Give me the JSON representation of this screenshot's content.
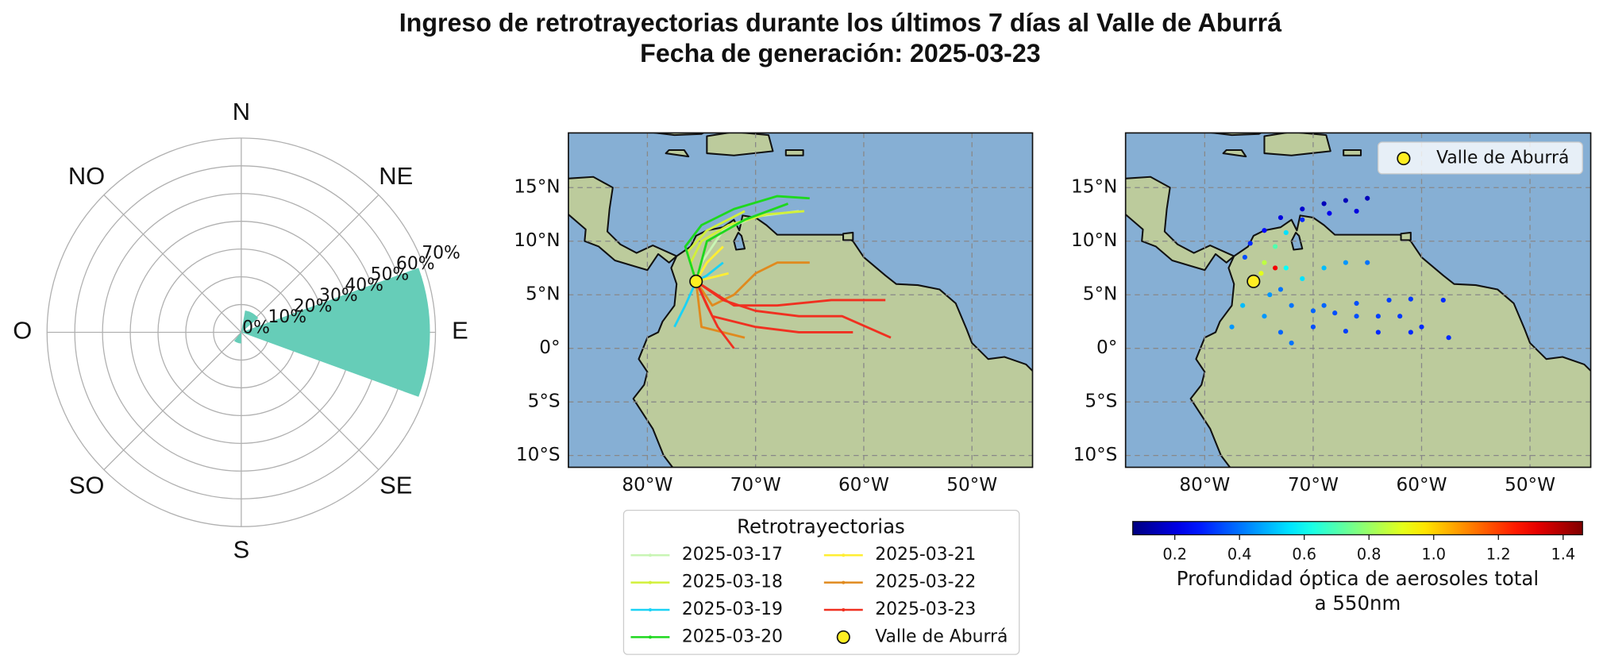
{
  "figure": {
    "title": "Ingreso de retrotrayectorias durante los últimos 7 días al Valle de Aburrá",
    "subtitle": "Fecha de generación: 2025-03-23"
  },
  "chart_data": [
    {
      "type": "polar_bar",
      "theta": [
        90,
        30,
        200
      ],
      "values": [
        68,
        8,
        4
      ],
      "bar_width": 40,
      "color": "#66cdb8",
      "rlim": [
        0,
        70
      ],
      "rticks": [
        {
          "value": 0,
          "label": "0%"
        },
        {
          "value": 10,
          "label": "10%"
        },
        {
          "value": 20,
          "label": "20%"
        },
        {
          "value": 30,
          "label": "30%"
        },
        {
          "value": 40,
          "label": "40%"
        },
        {
          "value": 50,
          "label": "50%"
        },
        {
          "value": 60,
          "label": "60%"
        },
        {
          "value": 70,
          "label": "70%"
        }
      ],
      "rtick_angle": 67.5,
      "theta_ticks": [
        {
          "value": 0,
          "label": "N"
        },
        {
          "value": 45,
          "label": "NE"
        },
        {
          "value": 90,
          "label": "E"
        },
        {
          "value": 135,
          "label": "SE"
        },
        {
          "value": 180,
          "label": "S"
        },
        {
          "value": 225,
          "label": "SO"
        },
        {
          "value": 270,
          "label": "O"
        },
        {
          "value": 315,
          "label": "NO"
        }
      ],
      "grid": true
    },
    {
      "type": "map_lines",
      "xlim": [
        -87.3,
        -44.4
      ],
      "ylim": [
        -11.1,
        20.1
      ],
      "xticks": [
        {
          "value": -80,
          "label": "80°W"
        },
        {
          "value": -70,
          "label": "70°W"
        },
        {
          "value": -60,
          "label": "60°W"
        },
        {
          "value": -50,
          "label": "50°W"
        }
      ],
      "yticks": [
        {
          "value": 15,
          "label": "15°N"
        },
        {
          "value": 10,
          "label": "10°N"
        },
        {
          "value": 5,
          "label": "5°N"
        },
        {
          "value": 0,
          "label": "0°"
        },
        {
          "value": -5,
          "label": "5°S"
        },
        {
          "value": -10,
          "label": "10°S"
        }
      ],
      "grid": true,
      "legend": "below",
      "legend_title": "Retrotrayectorias",
      "series": [
        {
          "name": "2025-03-17",
          "color": "#c8f5b4",
          "trajectories": [
            {
              "lon": [
                -66,
                -70,
                -73,
                -75,
                -75.5
              ],
              "lat": [
                12.8,
                12.3,
                11,
                8,
                6.25
              ]
            }
          ]
        },
        {
          "name": "2025-03-18",
          "color": "#d2f03a",
          "trajectories": [
            {
              "lon": [
                -65.5,
                -69,
                -72.5,
                -75,
                -76,
                -75.5
              ],
              "lat": [
                12.8,
                12.5,
                11.5,
                10,
                8,
                6.25
              ]
            },
            {
              "lon": [
                -71,
                -74.5,
                -76.3,
                -75.5
              ],
              "lat": [
                12.8,
                11,
                9,
                6.25
              ]
            }
          ]
        },
        {
          "name": "2025-03-19",
          "color": "#1ad2f5",
          "trajectories": [
            {
              "lon": [
                -77.5,
                -76.5,
                -75.5
              ],
              "lat": [
                2,
                4,
                6.25
              ]
            },
            {
              "lon": [
                -73,
                -74.5,
                -75.5
              ],
              "lat": [
                8,
                6.8,
                6.25
              ]
            }
          ]
        },
        {
          "name": "2025-03-20",
          "color": "#1ed81e",
          "trajectories": [
            {
              "lon": [
                -65,
                -68,
                -72,
                -75,
                -76.5,
                -75.5
              ],
              "lat": [
                14,
                14.2,
                13,
                11.5,
                9.5,
                6.25
              ]
            },
            {
              "lon": [
                -67,
                -71,
                -74.5,
                -75.5
              ],
              "lat": [
                13.5,
                12,
                10,
                6.25
              ]
            }
          ]
        },
        {
          "name": "2025-03-21",
          "color": "#ffee33",
          "trajectories": [
            {
              "lon": [
                -73,
                -74.5,
                -75.5
              ],
              "lat": [
                9.5,
                8,
                6.25
              ]
            },
            {
              "lon": [
                -72.5,
                -75.5
              ],
              "lat": [
                7,
                6.25
              ]
            }
          ]
        },
        {
          "name": "2025-03-22",
          "color": "#e08a1e",
          "trajectories": [
            {
              "lon": [
                -65,
                -68,
                -70,
                -72,
                -74,
                -75.5
              ],
              "lat": [
                8,
                8,
                7,
                5,
                4,
                6.25
              ]
            },
            {
              "lon": [
                -71,
                -73,
                -75,
                -75.5
              ],
              "lat": [
                1,
                1.5,
                2,
                6.25
              ]
            }
          ]
        },
        {
          "name": "2025-03-23",
          "color": "#f03020",
          "trajectories": [
            {
              "lon": [
                -57.5,
                -62,
                -66,
                -70,
                -73,
                -75.5
              ],
              "lat": [
                1,
                3,
                3,
                3.5,
                4.5,
                6.25
              ]
            },
            {
              "lon": [
                -58,
                -63,
                -68,
                -72,
                -75.5
              ],
              "lat": [
                4.5,
                4.5,
                4,
                4,
                6.25
              ]
            },
            {
              "lon": [
                -72,
                -73.5,
                -74.5,
                -75.5
              ],
              "lat": [
                0,
                2,
                4,
                6.25
              ]
            },
            {
              "lon": [
                -61,
                -66,
                -70,
                -74,
                -75.5
              ],
              "lat": [
                1.5,
                1.5,
                2,
                3,
                6.25
              ]
            }
          ]
        }
      ],
      "point": {
        "name": "Valle de Aburrá",
        "lon": -75.5,
        "lat": 6.25,
        "color": "#ffee22"
      }
    },
    {
      "type": "map_scatter",
      "xlim": [
        -87.3,
        -44.4
      ],
      "ylim": [
        -11.1,
        20.1
      ],
      "xticks": [
        {
          "value": -80,
          "label": "80°W"
        },
        {
          "value": -70,
          "label": "70°W"
        },
        {
          "value": -60,
          "label": "60°W"
        },
        {
          "value": -50,
          "label": "50°W"
        }
      ],
      "yticks": [
        {
          "value": 15,
          "label": "15°N"
        },
        {
          "value": 10,
          "label": "10°N"
        },
        {
          "value": 5,
          "label": "5°N"
        },
        {
          "value": 0,
          "label": "0°"
        },
        {
          "value": -5,
          "label": "5°S"
        },
        {
          "value": -10,
          "label": "10°S"
        }
      ],
      "grid": true,
      "legend": "upper right",
      "lon": [
        -65,
        -67,
        -69,
        -71,
        -73,
        -74.5,
        -75.8,
        -76.3,
        -66,
        -68.5,
        -71,
        -72.5,
        -73.5,
        -74.5,
        -73.5,
        -74.8,
        -65,
        -67,
        -69,
        -71,
        -73,
        -57.5,
        -60,
        -62,
        -64,
        -66,
        -68,
        -70,
        -72,
        -74,
        -58,
        -61,
        -63,
        -66,
        -69,
        -61,
        -64,
        -67,
        -70,
        -72,
        -73,
        -74.5,
        -77.5,
        -76.5,
        -72.5
      ],
      "lat": [
        14,
        13.8,
        13.5,
        13,
        12.2,
        11,
        9.8,
        8.5,
        12.8,
        12.6,
        12,
        10.8,
        9.5,
        8,
        7.5,
        7,
        8,
        8,
        7.5,
        6.5,
        5.5,
        1,
        2,
        3,
        3,
        3,
        3.3,
        3.5,
        4,
        5,
        4.5,
        4.6,
        4.5,
        4.2,
        4,
        1.5,
        1.5,
        1.6,
        2,
        0.5,
        1.5,
        3,
        2,
        4,
        7.5
      ],
      "aod": [
        0.15,
        0.15,
        0.15,
        0.18,
        0.2,
        0.25,
        0.3,
        0.35,
        0.2,
        0.22,
        0.3,
        0.55,
        0.7,
        0.85,
        1.3,
        0.9,
        0.4,
        0.45,
        0.5,
        0.55,
        0.4,
        0.3,
        0.3,
        0.32,
        0.33,
        0.35,
        0.35,
        0.38,
        0.4,
        0.45,
        0.3,
        0.32,
        0.33,
        0.35,
        0.38,
        0.3,
        0.3,
        0.33,
        0.35,
        0.4,
        0.38,
        0.45,
        0.45,
        0.5,
        0.6
      ],
      "cmap": "jet",
      "clim": [
        0.07,
        1.46
      ],
      "cticks": [
        0.2,
        0.4,
        0.6,
        0.8,
        {
          "value": 1,
          "label": "1.0"
        },
        1.2,
        1.4
      ],
      "colorbar_label": [
        "Profundidad óptica de aerosoles total",
        "a 550nm"
      ],
      "point": {
        "name": "Valle de Aburrá",
        "lon": -75.5,
        "lat": 6.25,
        "color": "#ffee22"
      }
    }
  ]
}
